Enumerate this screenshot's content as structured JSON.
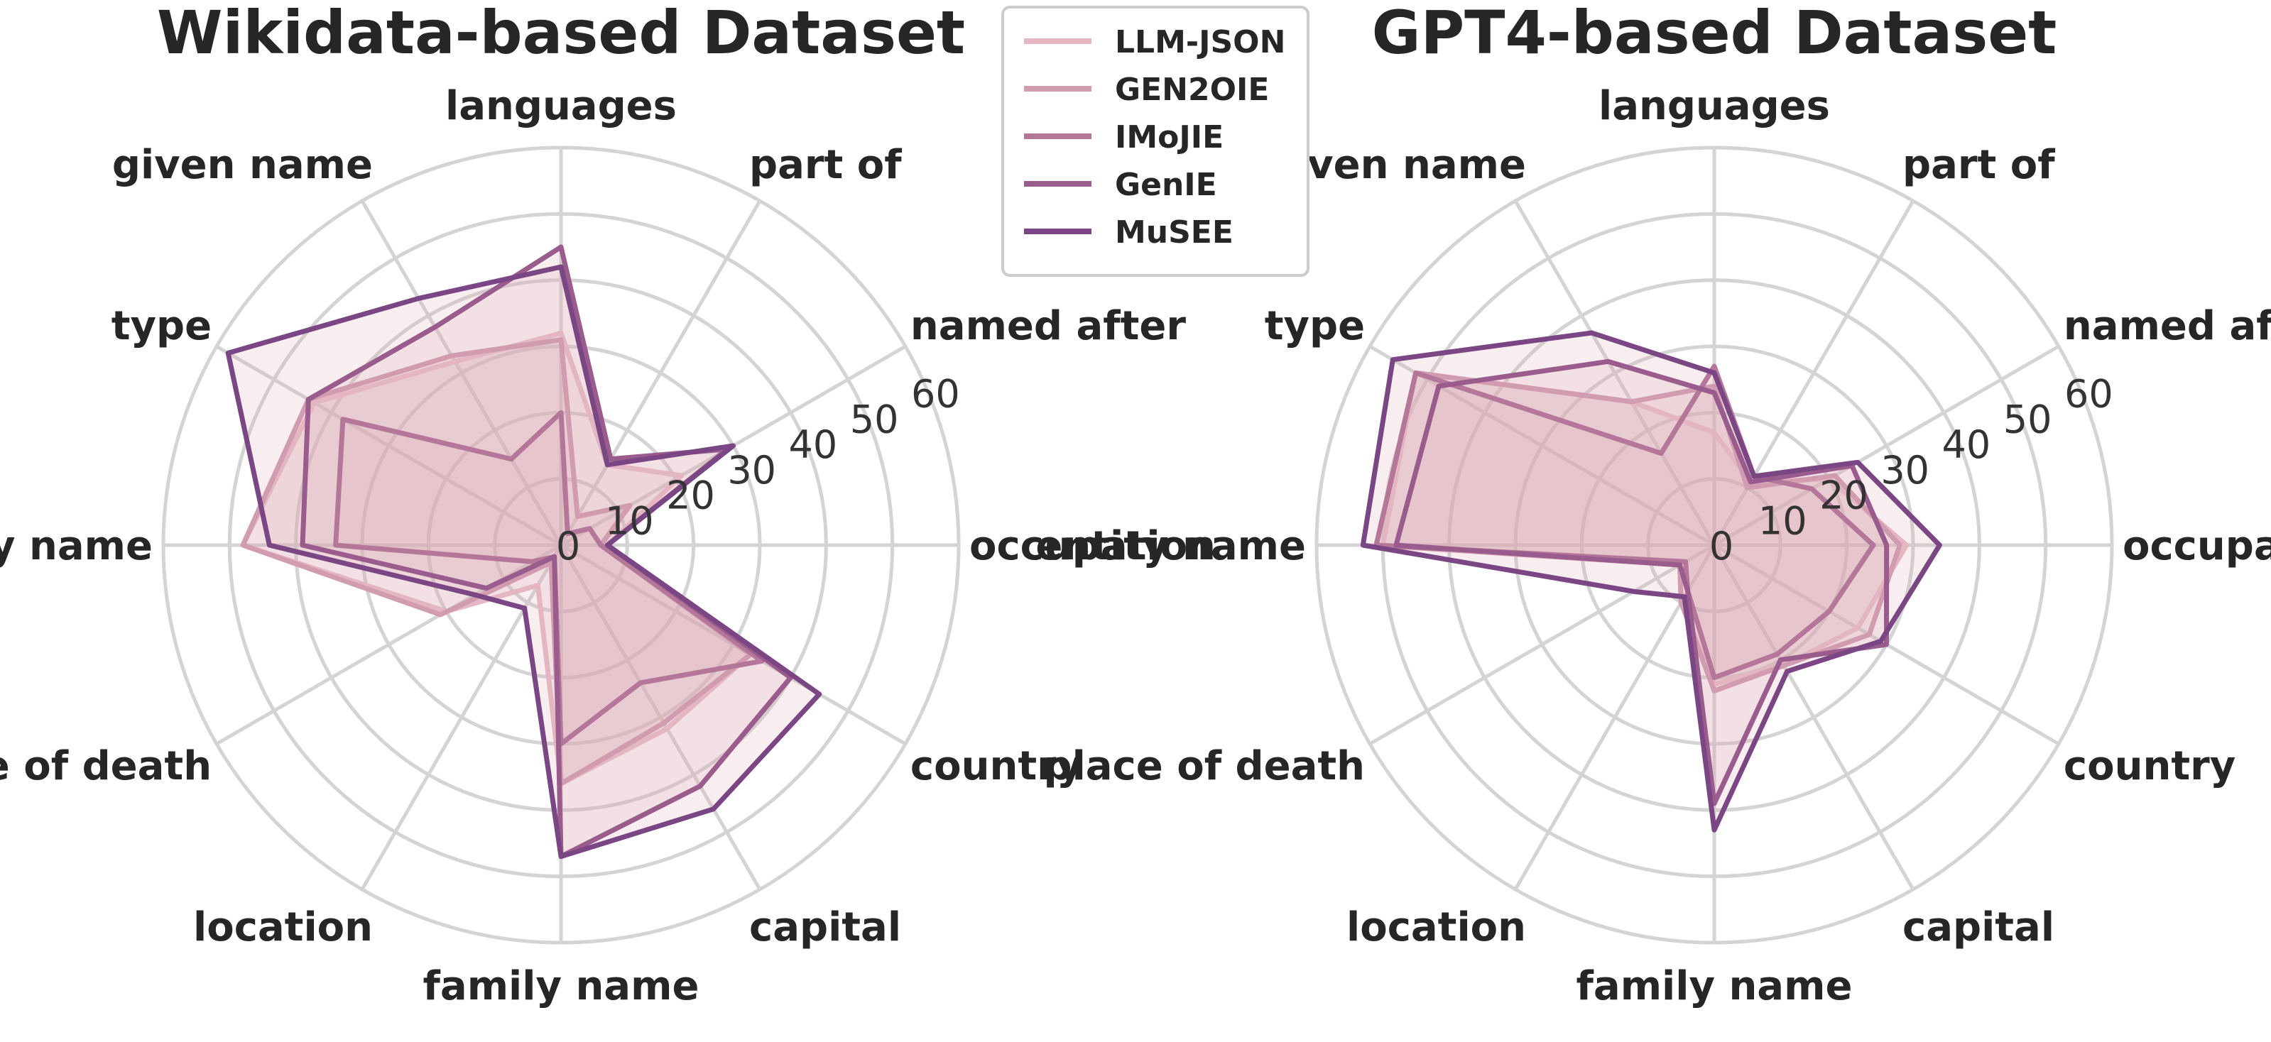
{
  "chart_data": [
    {
      "type": "radar",
      "title": "Wikidata-based Dataset",
      "categories": [
        "occupation",
        "named after",
        "part of",
        "languages",
        "given name",
        "type",
        "entity name",
        "place of death",
        "location",
        "family name",
        "capital",
        "country"
      ],
      "rlim": [
        0,
        60
      ],
      "rticks": [
        0,
        10,
        20,
        30,
        40,
        50,
        60
      ],
      "series": [
        {
          "name": "LLM-JSON",
          "values": [
            7,
            21,
            14,
            32,
            32,
            43,
            48,
            20,
            7,
            36,
            32,
            33
          ]
        },
        {
          "name": "GEN2OIE",
          "values": [
            6,
            12,
            5,
            31,
            33,
            44,
            48,
            21,
            3,
            36,
            31,
            33
          ]
        },
        {
          "name": "IMoJIE",
          "values": [
            6,
            5,
            2,
            20,
            15,
            38,
            34,
            5,
            2,
            30,
            24,
            35
          ]
        },
        {
          "name": "GenIE",
          "values": [
            7,
            29,
            15,
            45,
            38,
            44,
            39,
            13,
            2,
            47,
            42,
            40
          ]
        },
        {
          "name": "MuSEE",
          "values": [
            7,
            30,
            14,
            42,
            43,
            58,
            44,
            15,
            11,
            47,
            46,
            45
          ]
        }
      ]
    },
    {
      "type": "radar",
      "title": "GPT4-based Dataset",
      "categories": [
        "occupation",
        "named after",
        "part of",
        "languages",
        "given name",
        "type",
        "entity name",
        "place of death",
        "location",
        "family name",
        "capital",
        "country"
      ],
      "rlim": [
        0,
        60
      ],
      "rticks": [
        0,
        10,
        20,
        30,
        40,
        50,
        60
      ],
      "series": [
        {
          "name": "LLM-JSON",
          "values": [
            29,
            20,
            11,
            17,
            25,
            52,
            50,
            6,
            10,
            21,
            21,
            25
          ]
        },
        {
          "name": "GEN2OIE",
          "values": [
            28,
            21,
            10,
            24,
            25,
            52,
            51,
            6,
            10,
            22,
            21,
            27
          ]
        },
        {
          "name": "IMoJIE",
          "values": [
            24,
            17,
            12,
            27,
            16,
            52,
            51,
            5,
            8,
            20,
            19,
            20
          ]
        },
        {
          "name": "GenIE",
          "values": [
            26,
            24,
            11,
            23,
            32,
            48,
            48,
            6,
            8,
            39,
            20,
            30
          ]
        },
        {
          "name": "MuSEE",
          "values": [
            34,
            25,
            12,
            26,
            37,
            56,
            53,
            14,
            9,
            43,
            22,
            29
          ]
        }
      ]
    }
  ],
  "legend": [
    {
      "label": "LLM-JSON",
      "color": "#e3b6c2"
    },
    {
      "label": "GEN2OIE",
      "color": "#d19bb0"
    },
    {
      "label": "IMoJIE",
      "color": "#b4779a"
    },
    {
      "label": "GenIE",
      "color": "#9a5c8d"
    },
    {
      "label": "MuSEE",
      "color": "#7b4684"
    }
  ],
  "fill_color": "#dca8b6"
}
